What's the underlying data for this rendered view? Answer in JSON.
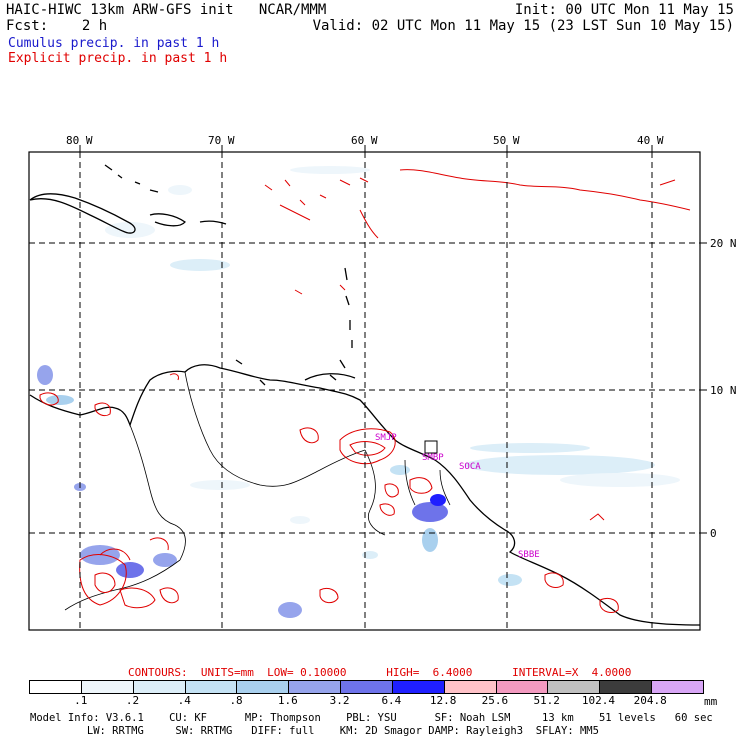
{
  "header": {
    "left_line1": "HAIC-HIWC 13km ARW-GFS init   NCAR/MMM",
    "left_line2": "Fcst:    2 h",
    "right_line1": "Init: 00 UTC Mon 11 May 15",
    "right_line2": "Valid: 02 UTC Mon 11 May 15 (23 LST Sun 10 May 15)"
  },
  "legend": {
    "cumulus": "Cumulus precip. in past 1 h",
    "explicit": "Explicit precip. in past 1 h",
    "cumulus_color": "#1a1acc",
    "explicit_color": "#e00000"
  },
  "map": {
    "lon_labels": [
      "80 W",
      "70 W",
      "60 W",
      "50 W",
      "40 W"
    ],
    "lat_labels": [
      "20 N",
      "10 N",
      "0"
    ],
    "stations": [
      "SMJP",
      "SMBP",
      "SOCA",
      "SBBE"
    ],
    "station_color": "#cc00cc"
  },
  "contours": {
    "text": "CONTOURS:  UNITS=mm  LOW= 0.10000      HIGH=  6.4000      INTERVAL=X  4.0000",
    "color": "#e00000"
  },
  "colorbar": {
    "labels": [
      ".1",
      ".2",
      ".4",
      ".8",
      "1.6",
      "3.2",
      "6.4",
      "12.8",
      "25.6",
      "51.2",
      "102.4",
      "204.8"
    ],
    "unit": "mm",
    "colors": [
      "#ffffff",
      "#eef6fb",
      "#dceef8",
      "#c4e2f4",
      "#a9d0ee",
      "#96a4ec",
      "#6e73ea",
      "#1f1fff",
      "#ffc2c8",
      "#f39ac0",
      "#c0c0c0",
      "#3c3c3c",
      "#d8a6f6"
    ]
  },
  "model_info": {
    "line1": "Model Info: V3.6.1    CU: KF      MP: Thompson    PBL: YSU      SF: Noah LSM     13 km    51 levels   60 sec",
    "line2": "         LW: RRTMG     SW: RRTMG   DIFF: full    KM: 2D Smagor DAMP: Rayleigh3  SFLAY: MM5"
  }
}
